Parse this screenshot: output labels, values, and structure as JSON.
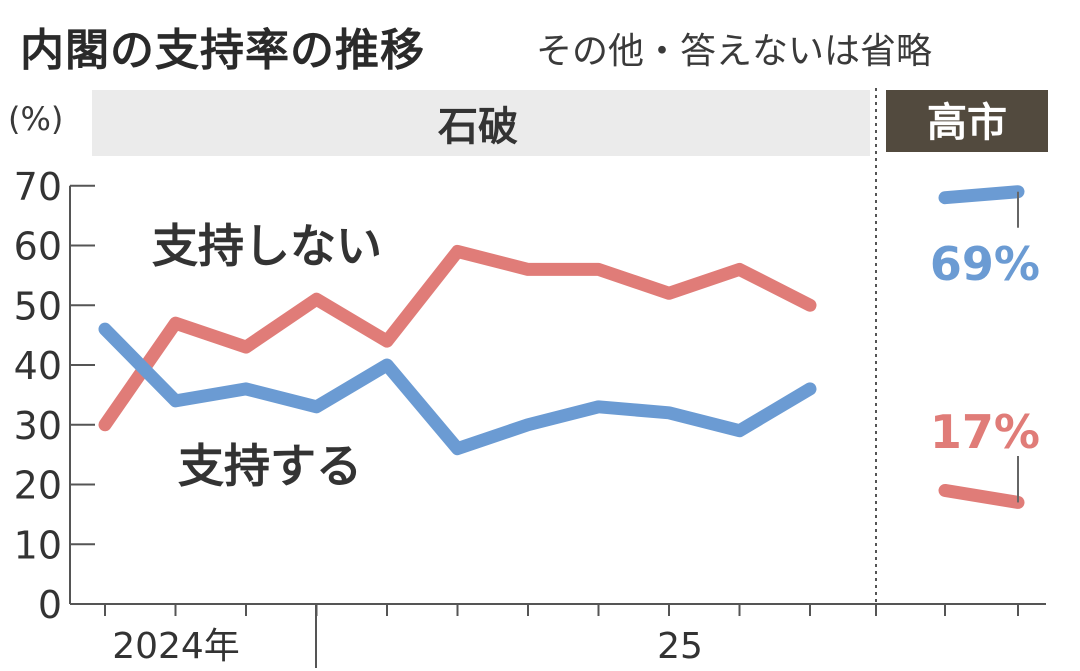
{
  "title": "内閣の支持率の推移",
  "subtitle": "その他・答えないは省略",
  "chart_data": {
    "type": "line",
    "unit": "(%)",
    "ylim": [
      0,
      70
    ],
    "y_ticks": [
      "0",
      "10",
      "20",
      "30",
      "40",
      "50",
      "60",
      "70"
    ],
    "x_labels": [
      "2024年",
      "25"
    ],
    "periods": [
      {
        "name": "石破",
        "band_color": "#ebebeb",
        "text_color": "#333333"
      },
      {
        "name": "高市",
        "band_color": "#524a3e",
        "text_color": "#ffffff"
      }
    ],
    "series": [
      {
        "name": "支持しない",
        "color": "#e07c78",
        "ishiba": [
          30,
          47,
          43,
          51,
          44,
          59,
          56,
          56,
          52,
          56,
          50
        ],
        "takaichi": [
          19,
          17
        ],
        "takaichi_label": "17%"
      },
      {
        "name": "支持する",
        "color": "#6b9bd3",
        "ishiba": [
          46,
          34,
          36,
          33,
          40,
          26,
          30,
          33,
          32,
          29,
          36
        ],
        "takaichi": [
          68,
          69
        ],
        "takaichi_label": "69%"
      }
    ]
  }
}
